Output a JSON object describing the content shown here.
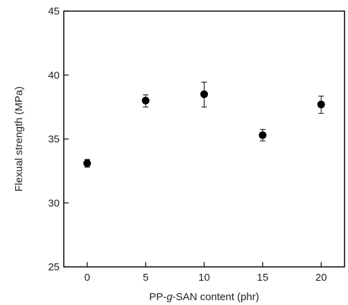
{
  "chart_data": {
    "type": "scatter",
    "title": "",
    "xlabel_parts": [
      "PP-",
      "g",
      "-SAN content (phr)"
    ],
    "ylabel": "Flexual strength (MPa)",
    "xlim": [
      -2,
      22
    ],
    "ylim": [
      25,
      45
    ],
    "xticks": [
      0,
      5,
      10,
      15,
      20
    ],
    "yticks": [
      25,
      30,
      35,
      40,
      45
    ],
    "grid": false,
    "legend": "none",
    "marker_color": "#000000",
    "series": [
      {
        "x": [
          0,
          5,
          10,
          15,
          20
        ],
        "y": [
          33.1,
          38.0,
          38.5,
          35.3,
          37.7
        ],
        "err_high": [
          0.3,
          0.45,
          0.95,
          0.45,
          0.65
        ],
        "err_low": [
          0.3,
          0.5,
          1.0,
          0.45,
          0.7
        ]
      }
    ]
  }
}
